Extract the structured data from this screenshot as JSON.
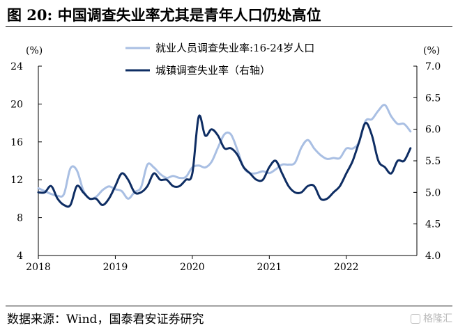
{
  "figure": {
    "title": "图 20:  中国调查失业率尤其是青年人口仍处高位",
    "source": "数据来源：Wind，国泰君安证券研究",
    "watermark": "格隆汇"
  },
  "colors": {
    "youth": "#a9bfe3",
    "urban": "#0e2d63",
    "axis": "#000000"
  },
  "chart_data": {
    "type": "line",
    "y_left_unit": "(%)",
    "y_right_unit": "(%)",
    "ylim_left": [
      4,
      24
    ],
    "yticks_left": [
      4,
      8,
      12,
      16,
      20,
      24
    ],
    "ylim_right": [
      4.0,
      7.0
    ],
    "yticks_right": [
      "4.0",
      "4.5",
      "5.0",
      "5.5",
      "6.0",
      "6.5",
      "7.0"
    ],
    "xlim": [
      "2018-01",
      "2022-12"
    ],
    "xticks": [
      "2018",
      "2019",
      "2020",
      "2021",
      "2022"
    ],
    "legend_position": "top-center",
    "grid": false,
    "series": [
      {
        "name": "就业人员调查失业率:16-24岁人口",
        "axis": "left",
        "x": [
          "2018-01",
          "2018-02",
          "2018-03",
          "2018-04",
          "2018-05",
          "2018-06",
          "2018-07",
          "2018-08",
          "2018-09",
          "2018-10",
          "2018-11",
          "2018-12",
          "2019-01",
          "2019-02",
          "2019-03",
          "2019-04",
          "2019-05",
          "2019-06",
          "2019-07",
          "2019-08",
          "2019-09",
          "2019-10",
          "2019-11",
          "2019-12",
          "2020-01",
          "2020-02",
          "2020-03",
          "2020-04",
          "2020-05",
          "2020-06",
          "2020-07",
          "2020-08",
          "2020-09",
          "2020-10",
          "2020-11",
          "2020-12",
          "2021-01",
          "2021-02",
          "2021-03",
          "2021-04",
          "2021-05",
          "2021-06",
          "2021-07",
          "2021-08",
          "2021-09",
          "2021-10",
          "2021-11",
          "2021-12",
          "2022-01",
          "2022-02",
          "2022-03",
          "2022-04",
          "2022-05",
          "2022-06",
          "2022-07",
          "2022-08",
          "2022-09",
          "2022-10",
          "2022-11"
        ],
        "values": [
          11.1,
          10.8,
          10.5,
          10.3,
          10.5,
          13.2,
          13.0,
          10.9,
          10.0,
          10.2,
          10.9,
          11.3,
          11.0,
          10.8,
          10.0,
          10.7,
          11.2,
          13.6,
          13.3,
          12.6,
          12.2,
          12.4,
          12.2,
          12.3,
          13.3,
          13.5,
          13.3,
          13.9,
          15.4,
          16.8,
          16.8,
          15.2,
          13.3,
          12.7,
          12.7,
          12.9,
          12.7,
          13.1,
          13.6,
          13.6,
          13.8,
          15.4,
          16.2,
          15.3,
          14.6,
          14.2,
          14.3,
          14.3,
          15.3,
          15.3,
          16.0,
          18.2,
          18.4,
          19.3,
          19.9,
          18.7,
          17.9,
          17.9,
          17.1
        ]
      },
      {
        "name": "城镇调查失业率（右轴）",
        "axis": "right",
        "x": [
          "2018-01",
          "2018-02",
          "2018-03",
          "2018-04",
          "2018-05",
          "2018-06",
          "2018-07",
          "2018-08",
          "2018-09",
          "2018-10",
          "2018-11",
          "2018-12",
          "2019-01",
          "2019-02",
          "2019-03",
          "2019-04",
          "2019-05",
          "2019-06",
          "2019-07",
          "2019-08",
          "2019-09",
          "2019-10",
          "2019-11",
          "2019-12",
          "2020-01",
          "2020-02",
          "2020-03",
          "2020-04",
          "2020-05",
          "2020-06",
          "2020-07",
          "2020-08",
          "2020-09",
          "2020-10",
          "2020-11",
          "2020-12",
          "2021-01",
          "2021-02",
          "2021-03",
          "2021-04",
          "2021-05",
          "2021-06",
          "2021-07",
          "2021-08",
          "2021-09",
          "2021-10",
          "2021-11",
          "2021-12",
          "2022-01",
          "2022-02",
          "2022-03",
          "2022-04",
          "2022-05",
          "2022-06",
          "2022-07",
          "2022-08",
          "2022-09",
          "2022-10",
          "2022-11"
        ],
        "values": [
          5.0,
          5.0,
          5.1,
          4.9,
          4.8,
          4.8,
          5.1,
          5.0,
          4.9,
          4.9,
          4.8,
          4.9,
          5.1,
          5.3,
          5.2,
          5.0,
          5.0,
          5.1,
          5.3,
          5.2,
          5.2,
          5.1,
          5.1,
          5.2,
          5.3,
          6.2,
          5.9,
          6.0,
          5.9,
          5.7,
          5.7,
          5.6,
          5.4,
          5.3,
          5.2,
          5.2,
          5.4,
          5.5,
          5.3,
          5.1,
          5.0,
          5.0,
          5.1,
          5.1,
          4.9,
          4.9,
          5.0,
          5.1,
          5.3,
          5.5,
          5.8,
          6.1,
          5.9,
          5.5,
          5.4,
          5.3,
          5.5,
          5.5,
          5.7
        ]
      }
    ]
  }
}
